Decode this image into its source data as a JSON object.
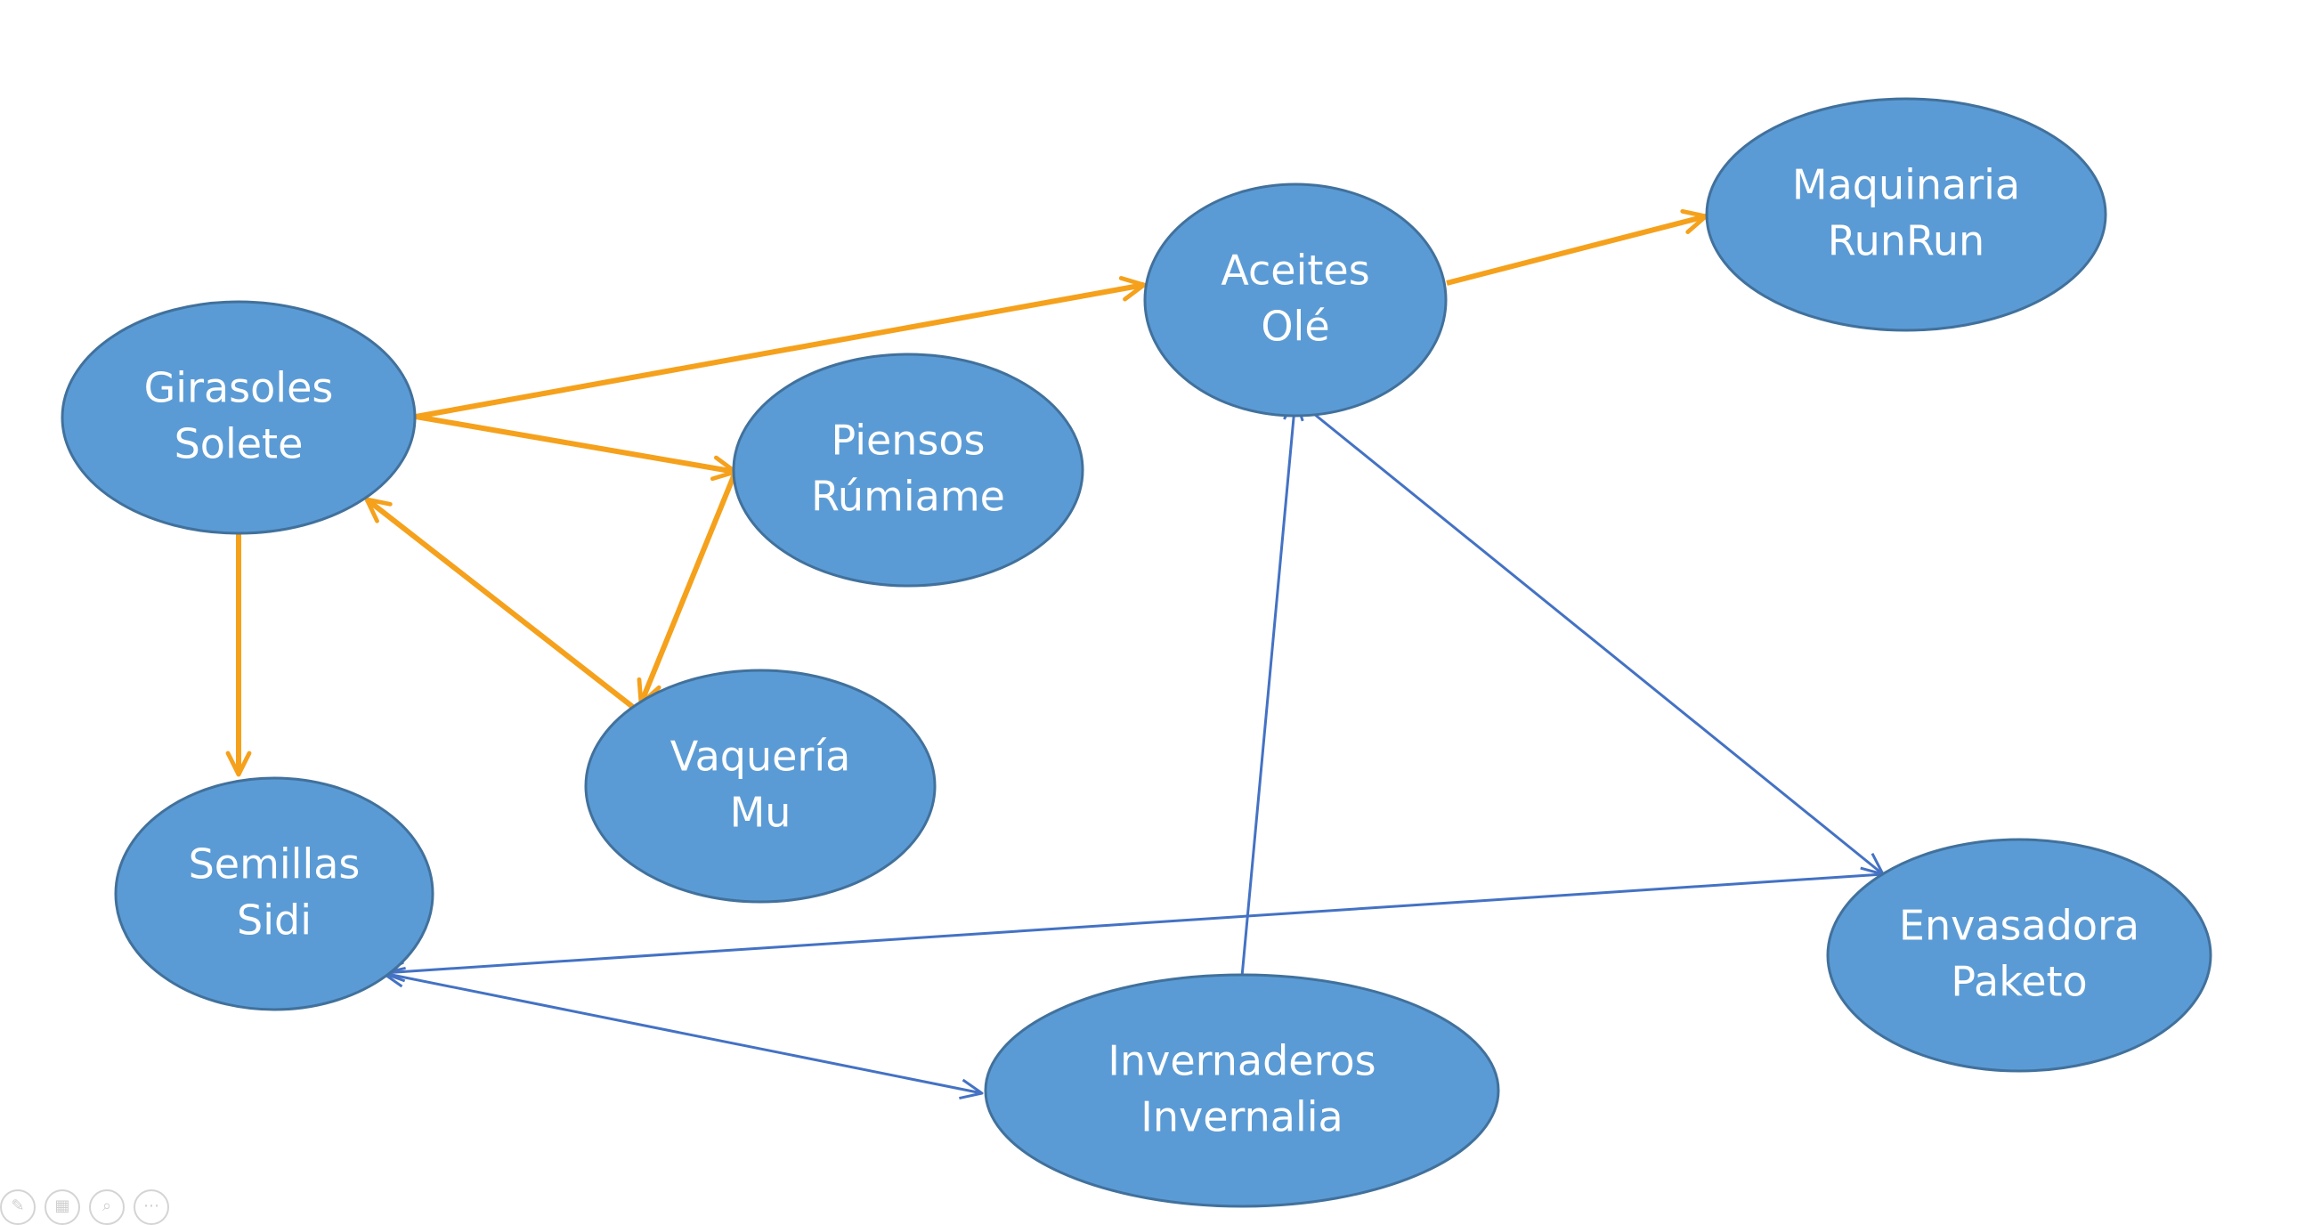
{
  "diagram": {
    "colors": {
      "node_fill": "#5b9bd5",
      "node_stroke": "#41719c",
      "orange_edge": "#f5a11c",
      "blue_edge": "#4472c4",
      "label": "#ffffff"
    },
    "nodes": [
      {
        "id": "girasoles",
        "line1": "Girasoles",
        "line2": "Solete"
      },
      {
        "id": "piensos",
        "line1": "Piensos",
        "line2": "Rúmiame"
      },
      {
        "id": "vaqueria",
        "line1": "Vaquería",
        "line2": "Mu"
      },
      {
        "id": "semillas",
        "line1": "Semillas",
        "line2": "Sidi"
      },
      {
        "id": "aceites",
        "line1": "Aceites",
        "line2": "Olé"
      },
      {
        "id": "maquinaria",
        "line1": "Maquinaria",
        "line2": "RunRun"
      },
      {
        "id": "envasadora",
        "line1": "Envasadora",
        "line2": "Paketo"
      },
      {
        "id": "invernaderos",
        "line1": "Invernaderos",
        "line2": "Invernalia"
      }
    ],
    "edges": [
      {
        "from": "girasoles",
        "to": "aceites",
        "color": "orange"
      },
      {
        "from": "girasoles",
        "to": "piensos",
        "color": "orange"
      },
      {
        "from": "girasoles",
        "to": "semillas",
        "color": "orange"
      },
      {
        "from": "piensos",
        "to": "vaqueria",
        "color": "orange"
      },
      {
        "from": "vaqueria",
        "to": "girasoles",
        "color": "orange"
      },
      {
        "from": "aceites",
        "to": "maquinaria",
        "color": "orange"
      },
      {
        "from": "aceites",
        "to": "envasadora",
        "color": "blue"
      },
      {
        "from": "envasadora",
        "to": "semillas",
        "color": "blue"
      },
      {
        "from": "semillas",
        "to": "invernaderos",
        "color": "blue"
      },
      {
        "from": "invernaderos",
        "to": "aceites",
        "color": "blue"
      }
    ]
  },
  "toolbar": [
    {
      "name": "pen-icon",
      "glyph": "✎"
    },
    {
      "name": "slides-icon",
      "glyph": "▦"
    },
    {
      "name": "zoom-icon",
      "glyph": "⌕"
    },
    {
      "name": "more-icon",
      "glyph": "⋯"
    }
  ]
}
